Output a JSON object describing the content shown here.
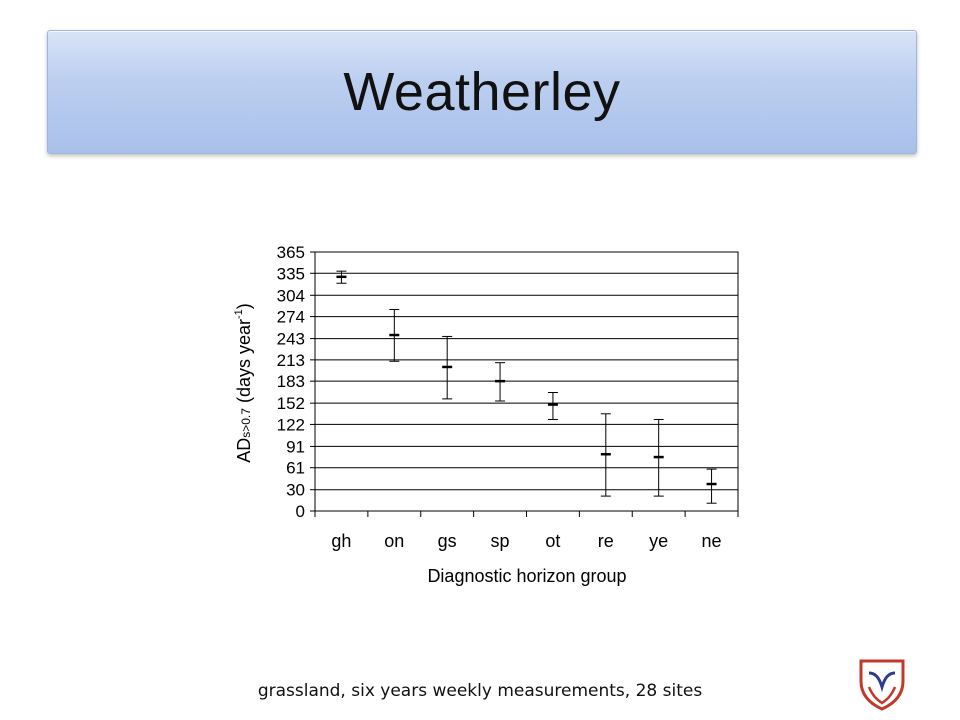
{
  "slide": {
    "title": "Weatherley",
    "caption": "grassland, six years weekly measurements, 28 sites"
  },
  "chart_data": {
    "type": "scatter",
    "title": "",
    "xlabel": "Diagnostic horizon group",
    "ylabel_main": "AD",
    "ylabel_sub": "s>0.7",
    "ylabel_rest": " (days year",
    "ylabel_sup": "-1",
    "ylabel_close": ")",
    "categories": [
      "gh",
      "on",
      "gs",
      "sp",
      "ot",
      "re",
      "ye",
      "ne"
    ],
    "yticks": [
      "0",
      "30",
      "61",
      "91",
      "122",
      "152",
      "183",
      "213",
      "243",
      "274",
      "304",
      "335",
      "365"
    ],
    "ylim": [
      0,
      365
    ],
    "grid": true,
    "series": [
      {
        "mean": [
          330,
          248,
          203,
          183,
          150,
          80,
          76,
          38
        ],
        "upper": [
          338,
          284,
          246,
          209,
          167,
          137,
          129,
          59
        ],
        "lower": [
          321,
          211,
          158,
          155,
          129,
          21,
          21,
          11
        ]
      }
    ]
  },
  "colors": {
    "title_gradient_top": "#d9e3f6",
    "title_gradient_bottom": "#a9c0ea",
    "logo_red": "#c0392b",
    "logo_blue": "#2c3e8f"
  }
}
